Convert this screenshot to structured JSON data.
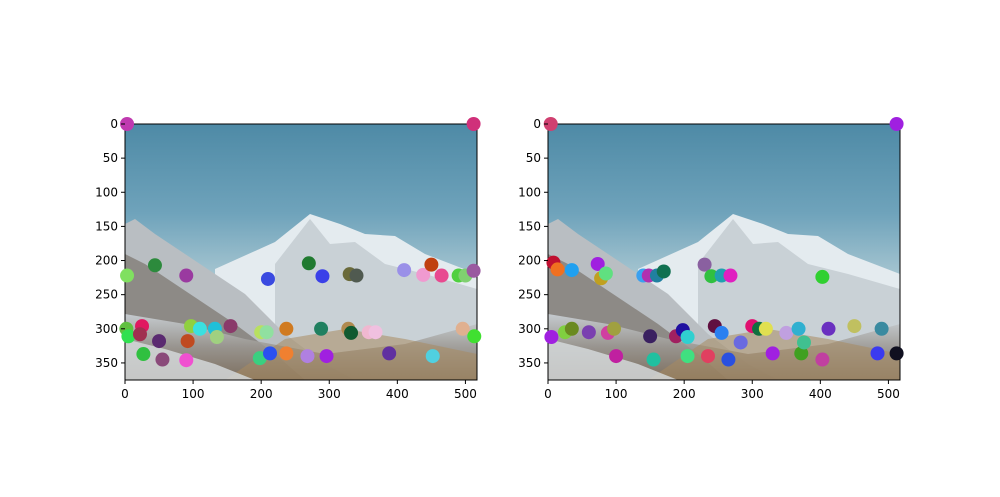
{
  "chart_data": [
    {
      "type": "scatter",
      "background": "photo of snow-covered mountain range under a blue sky",
      "xlim": [
        0,
        517
      ],
      "ylim": [
        375,
        0
      ],
      "x_ticks": [
        0,
        100,
        200,
        300,
        400,
        500
      ],
      "y_ticks": [
        0,
        50,
        100,
        150,
        200,
        250,
        300,
        350
      ],
      "points": [
        {
          "x": 3,
          "y": 0,
          "color": "#c03ab0"
        },
        {
          "x": 512,
          "y": 0,
          "color": "#d0307a"
        },
        {
          "x": 3,
          "y": 222,
          "color": "#80e060"
        },
        {
          "x": 44,
          "y": 207,
          "color": "#2c8a3c"
        },
        {
          "x": 90,
          "y": 222,
          "color": "#9a3aa0"
        },
        {
          "x": 210,
          "y": 227,
          "color": "#3a4ae0"
        },
        {
          "x": 270,
          "y": 204,
          "color": "#207a30"
        },
        {
          "x": 290,
          "y": 223,
          "color": "#3a40e8"
        },
        {
          "x": 330,
          "y": 220,
          "color": "#6a6a3a"
        },
        {
          "x": 340,
          "y": 222,
          "color": "#505a50"
        },
        {
          "x": 410,
          "y": 214,
          "color": "#9a90e8"
        },
        {
          "x": 438,
          "y": 221,
          "color": "#f09ad0"
        },
        {
          "x": 450,
          "y": 206,
          "color": "#c04010"
        },
        {
          "x": 465,
          "y": 222,
          "color": "#e84a90"
        },
        {
          "x": 490,
          "y": 222,
          "color": "#50d040"
        },
        {
          "x": 500,
          "y": 222,
          "color": "#80d070"
        },
        {
          "x": 512,
          "y": 215,
          "color": "#9a5aa0"
        },
        {
          "x": 2,
          "y": 300,
          "color": "#60c040"
        },
        {
          "x": 5,
          "y": 311,
          "color": "#30e050"
        },
        {
          "x": 25,
          "y": 296,
          "color": "#e01860"
        },
        {
          "x": 22,
          "y": 308,
          "color": "#a03050"
        },
        {
          "x": 27,
          "y": 337,
          "color": "#30c040"
        },
        {
          "x": 50,
          "y": 318,
          "color": "#5a2a70"
        },
        {
          "x": 55,
          "y": 345,
          "color": "#8a4a7a"
        },
        {
          "x": 92,
          "y": 318,
          "color": "#c04a20"
        },
        {
          "x": 97,
          "y": 296,
          "color": "#90d040"
        },
        {
          "x": 110,
          "y": 300,
          "color": "#3ae0e0"
        },
        {
          "x": 132,
          "y": 300,
          "color": "#20c0d8"
        },
        {
          "x": 135,
          "y": 312,
          "color": "#a0d080"
        },
        {
          "x": 155,
          "y": 296,
          "color": "#8a3a6a"
        },
        {
          "x": 90,
          "y": 346,
          "color": "#f050d0"
        },
        {
          "x": 200,
          "y": 305,
          "color": "#b8e060"
        },
        {
          "x": 208,
          "y": 305,
          "color": "#90e0a0"
        },
        {
          "x": 198,
          "y": 343,
          "color": "#3ad080"
        },
        {
          "x": 213,
          "y": 336,
          "color": "#2a50f0"
        },
        {
          "x": 237,
          "y": 300,
          "color": "#d07a20"
        },
        {
          "x": 237,
          "y": 336,
          "color": "#f08030"
        },
        {
          "x": 268,
          "y": 340,
          "color": "#b080e0"
        },
        {
          "x": 288,
          "y": 300,
          "color": "#208060"
        },
        {
          "x": 296,
          "y": 340,
          "color": "#a020e0"
        },
        {
          "x": 328,
          "y": 300,
          "color": "#b08a50"
        },
        {
          "x": 332,
          "y": 306,
          "color": "#105a30"
        },
        {
          "x": 358,
          "y": 305,
          "color": "#f0b8d0"
        },
        {
          "x": 368,
          "y": 305,
          "color": "#f0c0e0"
        },
        {
          "x": 388,
          "y": 336,
          "color": "#6030a0"
        },
        {
          "x": 452,
          "y": 340,
          "color": "#50d0e0"
        },
        {
          "x": 496,
          "y": 300,
          "color": "#e0b090"
        },
        {
          "x": 513,
          "y": 311,
          "color": "#40e030"
        }
      ]
    },
    {
      "type": "scatter",
      "background": "photo of snow-covered mountain range under a blue sky",
      "xlim": [
        0,
        517
      ],
      "ylim": [
        375,
        0
      ],
      "x_ticks": [
        0,
        100,
        200,
        300,
        400,
        500
      ],
      "y_ticks": [
        0,
        50,
        100,
        150,
        200,
        250,
        300,
        350
      ],
      "points": [
        {
          "x": 4,
          "y": 0,
          "color": "#d04070"
        },
        {
          "x": 512,
          "y": 0,
          "color": "#a020e0"
        },
        {
          "x": 8,
          "y": 203,
          "color": "#c01030"
        },
        {
          "x": 14,
          "y": 213,
          "color": "#f07020"
        },
        {
          "x": 35,
          "y": 214,
          "color": "#20a0f0"
        },
        {
          "x": 73,
          "y": 205,
          "color": "#a020e0"
        },
        {
          "x": 78,
          "y": 226,
          "color": "#c0a020"
        },
        {
          "x": 85,
          "y": 219,
          "color": "#60e080"
        },
        {
          "x": 140,
          "y": 222,
          "color": "#3aa0f0"
        },
        {
          "x": 148,
          "y": 222,
          "color": "#b030b0"
        },
        {
          "x": 160,
          "y": 222,
          "color": "#2080a0"
        },
        {
          "x": 170,
          "y": 216,
          "color": "#107050"
        },
        {
          "x": 230,
          "y": 206,
          "color": "#8a60a0"
        },
        {
          "x": 240,
          "y": 223,
          "color": "#30c040"
        },
        {
          "x": 255,
          "y": 222,
          "color": "#20a0b0"
        },
        {
          "x": 268,
          "y": 222,
          "color": "#e020c0"
        },
        {
          "x": 403,
          "y": 224,
          "color": "#30d030"
        },
        {
          "x": 5,
          "y": 312,
          "color": "#a020e0"
        },
        {
          "x": 25,
          "y": 305,
          "color": "#80d040"
        },
        {
          "x": 35,
          "y": 300,
          "color": "#6a8a20"
        },
        {
          "x": 60,
          "y": 305,
          "color": "#7a40b0"
        },
        {
          "x": 88,
          "y": 306,
          "color": "#d040a0"
        },
        {
          "x": 97,
          "y": 300,
          "color": "#a0a040"
        },
        {
          "x": 100,
          "y": 340,
          "color": "#c020a0"
        },
        {
          "x": 150,
          "y": 311,
          "color": "#3a2060"
        },
        {
          "x": 155,
          "y": 345,
          "color": "#20c0a0"
        },
        {
          "x": 188,
          "y": 311,
          "color": "#a02060"
        },
        {
          "x": 198,
          "y": 302,
          "color": "#2010a0"
        },
        {
          "x": 205,
          "y": 312,
          "color": "#30d0d0"
        },
        {
          "x": 205,
          "y": 340,
          "color": "#40e080"
        },
        {
          "x": 235,
          "y": 340,
          "color": "#e04060"
        },
        {
          "x": 245,
          "y": 296,
          "color": "#601040"
        },
        {
          "x": 255,
          "y": 306,
          "color": "#2a80f0"
        },
        {
          "x": 265,
          "y": 345,
          "color": "#2a50e0"
        },
        {
          "x": 283,
          "y": 320,
          "color": "#6a6ae0"
        },
        {
          "x": 300,
          "y": 296,
          "color": "#e01070"
        },
        {
          "x": 310,
          "y": 300,
          "color": "#107040"
        },
        {
          "x": 320,
          "y": 300,
          "color": "#e0e050"
        },
        {
          "x": 330,
          "y": 336,
          "color": "#a020e0"
        },
        {
          "x": 350,
          "y": 306,
          "color": "#c0a0e0"
        },
        {
          "x": 368,
          "y": 300,
          "color": "#30b0d0"
        },
        {
          "x": 372,
          "y": 336,
          "color": "#40a020"
        },
        {
          "x": 376,
          "y": 320,
          "color": "#40c090"
        },
        {
          "x": 403,
          "y": 345,
          "color": "#c040a0"
        },
        {
          "x": 412,
          "y": 300,
          "color": "#6a30c0"
        },
        {
          "x": 450,
          "y": 296,
          "color": "#c0c060"
        },
        {
          "x": 490,
          "y": 300,
          "color": "#3a8aa0"
        },
        {
          "x": 484,
          "y": 336,
          "color": "#3a3af0"
        },
        {
          "x": 512,
          "y": 336,
          "color": "#101020"
        }
      ]
    }
  ]
}
